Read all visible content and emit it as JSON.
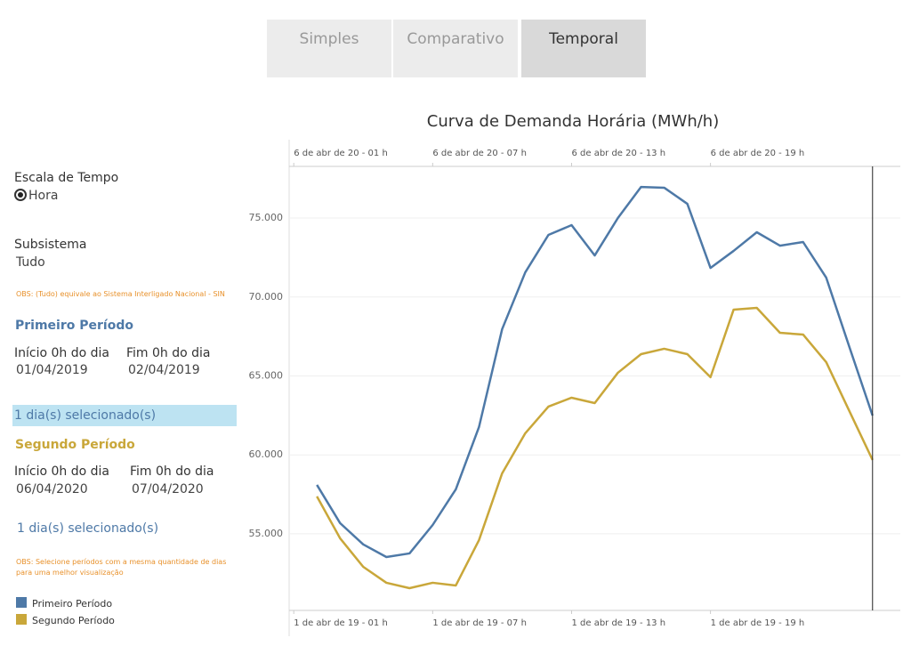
{
  "tabs": [
    {
      "label": "Simples",
      "active": false
    },
    {
      "label": "Comparativo",
      "active": false
    },
    {
      "label": "Temporal",
      "active": true
    }
  ],
  "sidebar": {
    "time_scale": {
      "label": "Escala de Tempo",
      "option": "Hora"
    },
    "subsystem": {
      "label": "Subsistema",
      "value": "Tudo",
      "note": "OBS: (Tudo) equivale ao Sistema Interligado Nacional - SIN"
    },
    "first_period": {
      "title": "Primeiro Período",
      "start_label": "Início 0h do dia",
      "start": "01/04/2019",
      "end_label": "Fim 0h do dia",
      "end": "02/04/2019",
      "selected": "1 dia(s) selecionado(s)"
    },
    "second_period": {
      "title": "Segundo Período",
      "start_label": "Início 0h do dia",
      "start": "06/04/2020",
      "end_label": "Fim 0h do dia",
      "end": "07/04/2020",
      "selected": "1 dia(s) selecionado(s)",
      "note": "OBS: Selecione períodos com a mesma quantidade de dias para uma melhor visualização"
    }
  },
  "chart_data": {
    "type": "line",
    "title": "Curva de Demanda Horária (MWh/h)",
    "x": [
      2,
      3,
      4,
      5,
      6,
      7,
      8,
      9,
      10,
      11,
      12,
      13,
      14,
      15,
      16,
      17,
      18,
      19,
      20,
      21,
      22,
      23,
      24,
      25,
      26
    ],
    "series": [
      {
        "name": "Primeiro Período",
        "color": "#4e79a7",
        "values": [
          58100,
          55680,
          54330,
          53530,
          53760,
          55560,
          57820,
          61760,
          67960,
          71560,
          73930,
          74550,
          72630,
          75000,
          76970,
          76920,
          75900,
          71840,
          72920,
          74100,
          73250,
          73480,
          71220,
          66830,
          62490
        ]
      },
      {
        "name": "Segundo Período",
        "color": "#c9a73a",
        "values": [
          57370,
          54720,
          52910,
          51900,
          51560,
          51900,
          51730,
          54600,
          58830,
          61370,
          63060,
          63620,
          63280,
          65200,
          66380,
          66720,
          66380,
          64920,
          69200,
          69310,
          67730,
          67620,
          65870,
          62770,
          59680
        ]
      }
    ],
    "xlim": [
      0.8,
      27.2
    ],
    "ylim": [
      50150,
      78270
    ],
    "yticks": [
      {
        "value": 55000,
        "label": "55.000"
      },
      {
        "value": 60000,
        "label": "60.000"
      },
      {
        "value": 65000,
        "label": "65.000"
      },
      {
        "value": 70000,
        "label": "70.000"
      },
      {
        "value": 75000,
        "label": "75.000"
      }
    ],
    "xticks": [
      {
        "value": 1,
        "label": "1 de abr de 19 - 01 h"
      },
      {
        "value": 7,
        "label": "1 de abr de 19 - 07 h"
      },
      {
        "value": 13,
        "label": "1 de abr de 19 - 13 h"
      },
      {
        "value": 19,
        "label": "1 de abr de 19 - 19 h"
      }
    ],
    "x2ticks": [
      {
        "value": 1,
        "label": "6 de abr de 20 - 01 h"
      },
      {
        "value": 7,
        "label": "6 de abr de 20 - 07 h"
      },
      {
        "value": 13,
        "label": "6 de abr de 20 - 13 h"
      },
      {
        "value": 19,
        "label": "6 de abr de 20 - 19 h"
      }
    ],
    "grid": true
  }
}
